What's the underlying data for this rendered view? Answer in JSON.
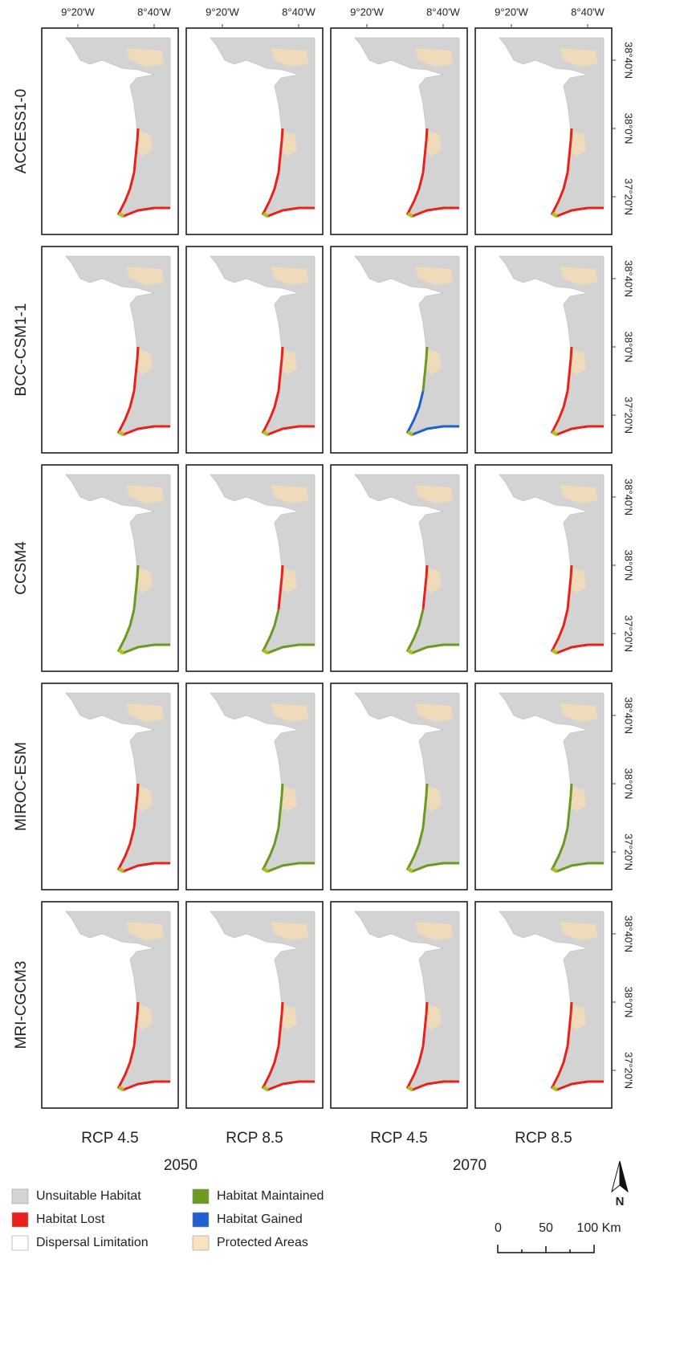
{
  "top_axis_labels": [
    "9°20'W",
    "8°40'W"
  ],
  "right_axis_labels": [
    "38°40'N",
    "38°0'N",
    "37°20'N"
  ],
  "models": [
    "ACCESS1-0",
    "BCC-CSM1-1",
    "CCSM4",
    "MIROC-ESM",
    "MRI-CGCM3"
  ],
  "scenarios": [
    "RCP 4.5",
    "RCP 8.5",
    "RCP 4.5",
    "RCP 8.5"
  ],
  "years": [
    "2050",
    "2070"
  ],
  "legend": [
    "Unsuitable Habitat",
    "Habitat Lost",
    "Dispersal Limitation",
    "Habitat Maintained",
    "Habitat Gained",
    "Protected Areas"
  ],
  "scale_bar": [
    "0",
    "50",
    "100 Km"
  ],
  "north_arrow": "N"
}
